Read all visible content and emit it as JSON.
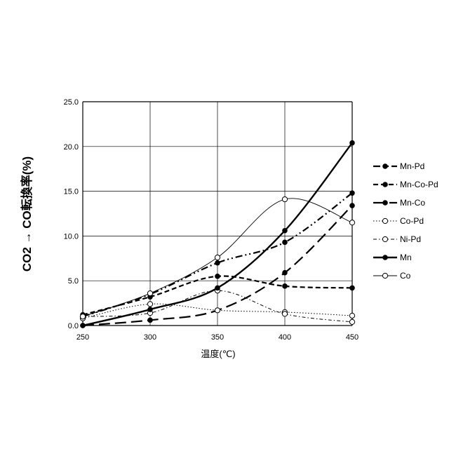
{
  "chart_data": {
    "type": "line",
    "title": "",
    "xlabel": "温度(℃)",
    "ylabel": "CO2 → CO転換率(%)",
    "x": [
      250,
      300,
      350,
      400,
      450
    ],
    "xticks": [
      "250",
      "300",
      "350",
      "400",
      "450"
    ],
    "yticks": [
      "0.0",
      "5.0",
      "10.0",
      "15.0",
      "20.0",
      "25.0"
    ],
    "xlim": [
      250,
      450
    ],
    "ylim": [
      0,
      25
    ],
    "grid": true,
    "legend_position": "right",
    "series": [
      {
        "name": "Mn-Pd",
        "values": [
          1.0,
          3.5,
          7.0,
          9.3,
          14.8
        ],
        "style": "dashdotdot",
        "marker": "filled",
        "width": 2.2
      },
      {
        "name": "Mn-Co-Pd",
        "values": [
          1.2,
          3.2,
          5.5,
          4.4,
          4.2
        ],
        "style": "dashed",
        "marker": "filled",
        "width": 2.2
      },
      {
        "name": "Mn-Co",
        "values": [
          0.0,
          0.6,
          1.7,
          5.9,
          13.4
        ],
        "style": "longdash",
        "marker": "filled",
        "width": 2.2
      },
      {
        "name": "Co-Pd",
        "values": [
          0.8,
          2.4,
          1.7,
          1.5,
          1.1
        ],
        "style": "dotted",
        "marker": "open",
        "width": 1.0
      },
      {
        "name": "Ni-Pd",
        "values": [
          1.0,
          1.4,
          3.9,
          1.3,
          0.4
        ],
        "style": "dashdot",
        "marker": "open",
        "width": 1.0
      },
      {
        "name": "Mn",
        "values": [
          0.0,
          1.8,
          4.2,
          10.6,
          20.4
        ],
        "style": "solid",
        "marker": "filled",
        "width": 2.4
      },
      {
        "name": "Co",
        "values": [
          1.0,
          3.6,
          7.6,
          14.1,
          11.5
        ],
        "style": "solid",
        "marker": "open",
        "width": 0.9
      }
    ]
  }
}
